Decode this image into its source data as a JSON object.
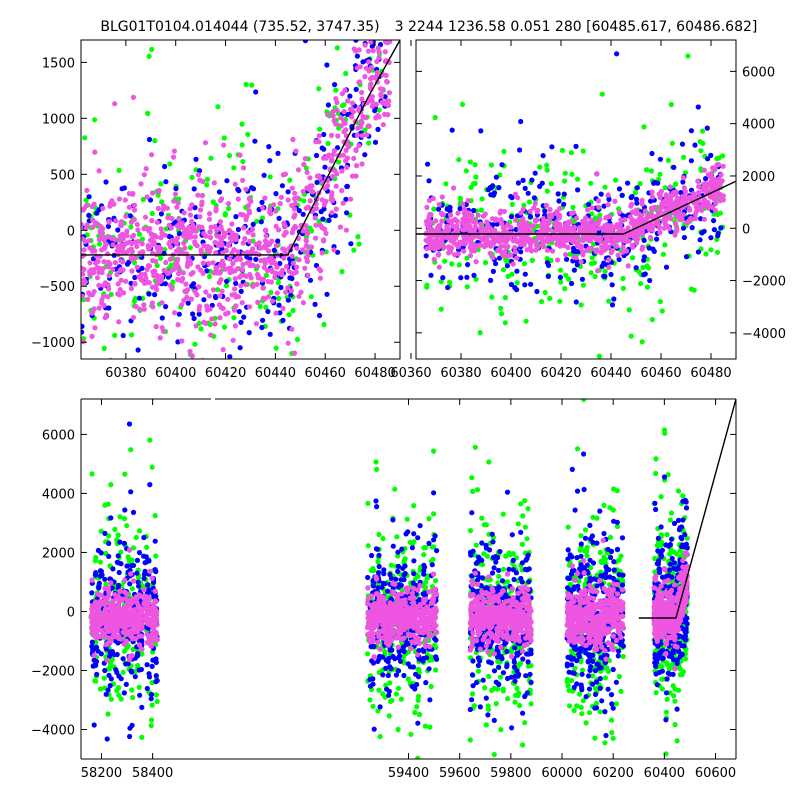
{
  "titles": {
    "left": "BLG01T0104.014044 (735.52, 3747.35)",
    "right": "3 2244 1236.58 0.051 280 [60485.617, 60486.682]"
  },
  "colors": {
    "green": "#00ff00",
    "blue": "#0000ff",
    "pink": "#ee55e0",
    "model": "#000000"
  },
  "chart_data": [
    {
      "type": "scatter",
      "panel": "top-left",
      "xlim": [
        60362,
        60490
      ],
      "ylim": [
        -1150,
        1700
      ],
      "xticks": [
        60380,
        60400,
        60420,
        60440,
        60460,
        60480
      ],
      "yticks": [
        -1000,
        -500,
        0,
        500,
        1000,
        1500
      ],
      "ytick_side": "left",
      "model_line": {
        "x": [
          60362,
          60445,
          60477,
          60490
        ],
        "y": [
          -220,
          -220,
          1180,
          1700
        ]
      },
      "series": [
        {
          "color": "green",
          "n": 260,
          "xrange": [
            60362,
            60486
          ],
          "spread": 520
        },
        {
          "color": "blue",
          "n": 340,
          "xrange": [
            60362,
            60486
          ],
          "spread": 380
        },
        {
          "color": "pink",
          "n": 900,
          "xrange": [
            60362,
            60486
          ],
          "spread": 300
        }
      ]
    },
    {
      "type": "scatter",
      "panel": "top-right",
      "xlim": [
        60362,
        60490
      ],
      "ylim": [
        -5000,
        7200
      ],
      "xticks": [
        60360,
        60380,
        60400,
        60420,
        60440,
        60460,
        60480
      ],
      "yticks": [
        -4000,
        -2000,
        0,
        2000,
        4000,
        6000
      ],
      "ytick_side": "right",
      "model_line": {
        "x": [
          60362,
          60445,
          60490
        ],
        "y": [
          -220,
          -220,
          1800
        ]
      },
      "series": [
        {
          "color": "green",
          "n": 300,
          "xrange": [
            60366,
            60485
          ],
          "spread": 1500
        },
        {
          "color": "blue",
          "n": 360,
          "xrange": [
            60366,
            60485
          ],
          "spread": 1100
        },
        {
          "color": "pink",
          "n": 900,
          "xrange": [
            60366,
            60485
          ],
          "spread": 420
        }
      ]
    },
    {
      "type": "scatter",
      "panel": "bottom",
      "xlim": [
        58120,
        60680
      ],
      "ylim": [
        -5000,
        7200
      ],
      "xticks": [
        58200,
        58400,
        59400,
        59600,
        59800,
        60000,
        60200,
        60400,
        60600
      ],
      "yticks": [
        -4000,
        -2000,
        0,
        2000,
        4000,
        6000
      ],
      "ytick_side": "left",
      "model_line": {
        "x": [
          60300,
          60445,
          60680
        ],
        "y": [
          -220,
          -220,
          7200
        ]
      },
      "seasons": [
        [
          58160,
          58420
        ],
        [
          59240,
          59510
        ],
        [
          59640,
          59880
        ],
        [
          60020,
          60240
        ],
        [
          60360,
          60490
        ]
      ],
      "series": [
        {
          "color": "green",
          "n": 1300,
          "spread": 1600
        },
        {
          "color": "blue",
          "n": 1600,
          "spread": 1200
        },
        {
          "color": "pink",
          "n": 4000,
          "spread": 420
        }
      ]
    }
  ]
}
